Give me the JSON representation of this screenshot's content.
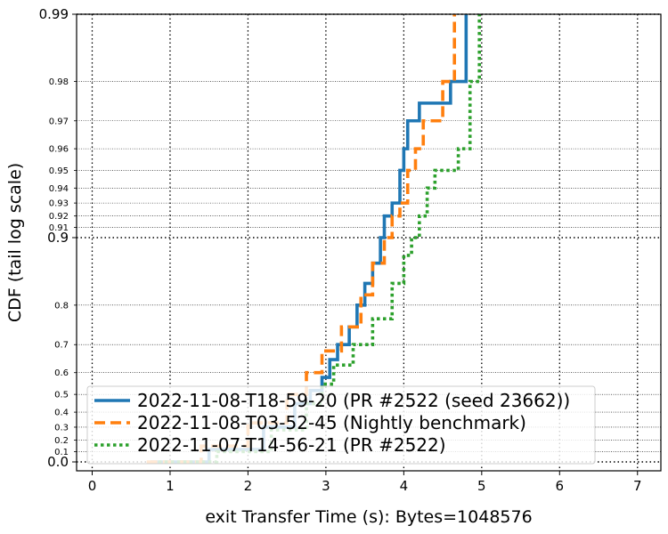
{
  "chart_data": {
    "type": "line",
    "title": "",
    "xlabel": "exit Transfer Time (s): Bytes=1048576",
    "ylabel": "CDF (tail log scale)",
    "xlim": [
      -0.2,
      7.3
    ],
    "x_ticks": [
      0,
      1,
      2,
      3,
      4,
      5,
      6,
      7
    ],
    "y_scale": "tail-log",
    "y_major_ticks": [
      "0.99",
      "0.9",
      "0.0"
    ],
    "y_minor_ticks": [
      "0.98",
      "0.97",
      "0.96",
      "0.95",
      "0.94",
      "0.93",
      "0.92",
      "0.91",
      "0.8",
      "0.7",
      "0.6",
      "0.5",
      "0.4",
      "0.3",
      "0.2",
      "0.1"
    ],
    "grid": true,
    "legend_position": "lower-left",
    "series": [
      {
        "name": "2022-11-08-T18-59-20 (PR #2522 (seed 23662))",
        "color": "#1f77b4",
        "dash": "solid",
        "points": [
          [
            0.75,
            0.0
          ],
          [
            1.5,
            0.12
          ],
          [
            2.2,
            0.3
          ],
          [
            2.6,
            0.45
          ],
          [
            2.8,
            0.52
          ],
          [
            2.95,
            0.58
          ],
          [
            3.05,
            0.65
          ],
          [
            3.15,
            0.7
          ],
          [
            3.3,
            0.75
          ],
          [
            3.4,
            0.8
          ],
          [
            3.5,
            0.84
          ],
          [
            3.6,
            0.87
          ],
          [
            3.7,
            0.9
          ],
          [
            3.75,
            0.92
          ],
          [
            3.85,
            0.93
          ],
          [
            3.95,
            0.95
          ],
          [
            4.0,
            0.96
          ],
          [
            4.05,
            0.97
          ],
          [
            4.2,
            0.975
          ],
          [
            4.6,
            0.98
          ],
          [
            4.8,
            0.99
          ]
        ]
      },
      {
        "name": "2022-11-08-T03-52-45 (Nightly benchmark)",
        "color": "#ff7f0e",
        "dash": "dashed",
        "points": [
          [
            0.7,
            0.0
          ],
          [
            1.4,
            0.15
          ],
          [
            2.0,
            0.33
          ],
          [
            2.5,
            0.5
          ],
          [
            2.75,
            0.6
          ],
          [
            2.95,
            0.68
          ],
          [
            3.2,
            0.75
          ],
          [
            3.45,
            0.82
          ],
          [
            3.6,
            0.87
          ],
          [
            3.75,
            0.9
          ],
          [
            3.85,
            0.92
          ],
          [
            3.95,
            0.93
          ],
          [
            4.05,
            0.95
          ],
          [
            4.15,
            0.96
          ],
          [
            4.25,
            0.97
          ],
          [
            4.5,
            0.98
          ],
          [
            4.65,
            0.99
          ]
        ]
      },
      {
        "name": "2022-11-07-T14-56-21 (PR #2522)",
        "color": "#2ca02c",
        "dash": "dotted",
        "points": [
          [
            0.85,
            0.0
          ],
          [
            1.6,
            0.1
          ],
          [
            2.3,
            0.28
          ],
          [
            2.75,
            0.45
          ],
          [
            2.95,
            0.55
          ],
          [
            3.1,
            0.63
          ],
          [
            3.35,
            0.7
          ],
          [
            3.6,
            0.77
          ],
          [
            3.85,
            0.84
          ],
          [
            4.0,
            0.88
          ],
          [
            4.1,
            0.9
          ],
          [
            4.2,
            0.92
          ],
          [
            4.3,
            0.94
          ],
          [
            4.4,
            0.95
          ],
          [
            4.7,
            0.96
          ],
          [
            4.85,
            0.98
          ],
          [
            4.97,
            0.99
          ]
        ]
      }
    ]
  }
}
